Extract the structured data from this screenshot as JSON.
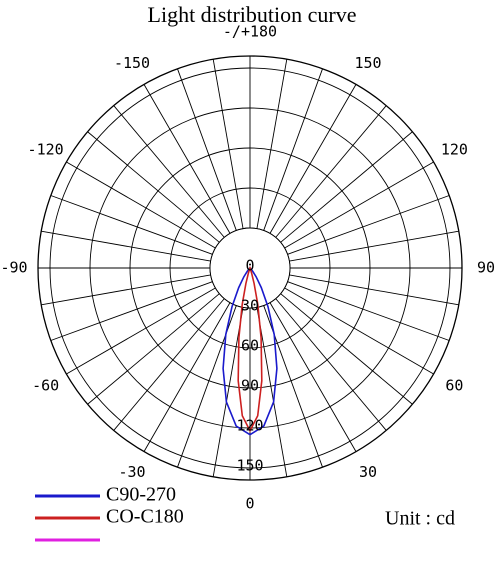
{
  "chart_data": {
    "type": "polar",
    "title": "Light distribution curve",
    "annotation": "Unit : cd",
    "rlim": [
      0,
      159
    ],
    "rticks": [
      0,
      30,
      60,
      90,
      120,
      150
    ],
    "thetaticks": [
      {
        "value": 180,
        "label": "-/+180"
      },
      150,
      120,
      90,
      60,
      30,
      0,
      -30,
      -60,
      -90,
      -120,
      -150
    ],
    "theta_minor": 10,
    "series": [
      {
        "name": "C90-270",
        "color": "#1a1acc",
        "theta": [
          -45,
          -40,
          -35,
          -30,
          -25,
          -20,
          -15,
          -10,
          -5,
          0,
          5,
          10,
          15,
          20,
          25,
          30,
          35,
          40,
          45
        ],
        "values": [
          0,
          3,
          8,
          17,
          32,
          53,
          78,
          102,
          119,
          125,
          119,
          102,
          78,
          53,
          32,
          17,
          8,
          3,
          0
        ]
      },
      {
        "name": "CO-C180",
        "color": "#cc2020",
        "theta": [
          -24,
          -21,
          -18,
          -15,
          -12,
          -9,
          -6,
          -3,
          0,
          3,
          6,
          9,
          12,
          15,
          18,
          21,
          24
        ],
        "values": [
          0,
          1,
          4,
          12,
          28,
          53,
          85,
          111,
          122,
          111,
          85,
          53,
          28,
          12,
          4,
          1,
          0
        ]
      },
      {
        "color": "#e020e0",
        "theta": [],
        "values": []
      }
    ]
  }
}
